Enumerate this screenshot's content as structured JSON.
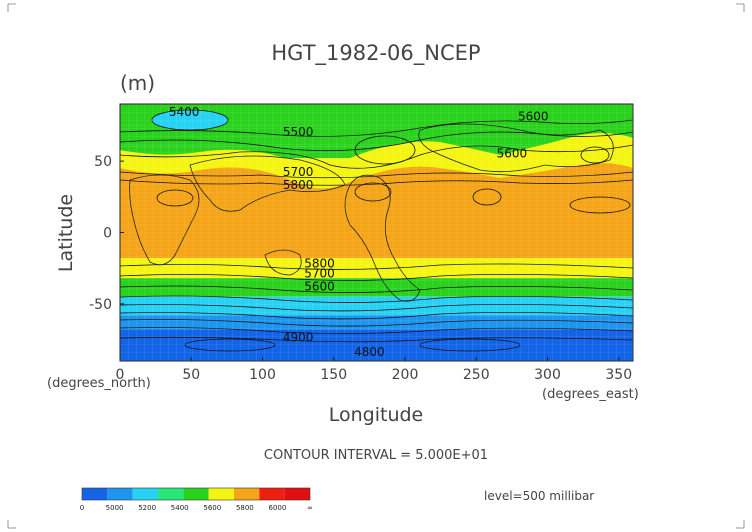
{
  "chart_data": {
    "type": "heatmap",
    "title": "HGT_1982-06_NCEP",
    "units": "(m)",
    "xlabel": "Longitude",
    "ylabel": "Latitude",
    "x_axis_note": "(degrees_east)",
    "y_axis_note": "(degrees_north)",
    "xlim": [
      0,
      360
    ],
    "ylim": [
      -90,
      90
    ],
    "x_ticks": [
      0,
      50,
      100,
      150,
      200,
      250,
      300,
      350
    ],
    "y_ticks": [
      50,
      0,
      -50
    ],
    "contour_interval_text": "CONTOUR INTERVAL = 5.000E+01",
    "level_text": "level=500 millibar",
    "colorbar": {
      "labels": [
        "0",
        "5000",
        "5200",
        "5400",
        "5600",
        "5800",
        "6000",
        "∞"
      ],
      "colors": [
        "#1464e8",
        "#1e96f0",
        "#28d2f5",
        "#28e678",
        "#2ad21e",
        "#f5f514",
        "#f5a519",
        "#f01e0f",
        "#e01010"
      ],
      "levels": [
        0,
        5000,
        5200,
        5400,
        5600,
        5800,
        6000
      ]
    },
    "bands": [
      {
        "lat_top": 90,
        "lat_bottom": 75,
        "color": "#2ad21e"
      },
      {
        "lat_top": 75,
        "lat_bottom": 60,
        "color": "#2ad21e"
      },
      {
        "lat_top": 60,
        "lat_bottom": 52,
        "color": "#2ad21e"
      },
      {
        "lat_top": 52,
        "lat_bottom": 40,
        "color": "#f5f514"
      },
      {
        "lat_top": 40,
        "lat_bottom": -18,
        "color": "#f5a519"
      },
      {
        "lat_top": -18,
        "lat_bottom": -32,
        "color": "#f5f514"
      },
      {
        "lat_top": -32,
        "lat_bottom": -45,
        "color": "#2ad21e"
      },
      {
        "lat_top": -45,
        "lat_bottom": -58,
        "color": "#28d2f5"
      },
      {
        "lat_top": -58,
        "lat_bottom": -68,
        "color": "#1e96f0"
      },
      {
        "lat_top": -68,
        "lat_bottom": -90,
        "color": "#1464e8"
      }
    ],
    "contour_labels": [
      {
        "text": "5400",
        "lon": 45,
        "lat": 84
      },
      {
        "text": "5500",
        "lon": 125,
        "lat": 70
      },
      {
        "text": "5600",
        "lon": 275,
        "lat": 55
      },
      {
        "text": "5600",
        "lon": 290,
        "lat": 81
      },
      {
        "text": "5700",
        "lon": 125,
        "lat": 42
      },
      {
        "text": "5800",
        "lon": 125,
        "lat": 33
      },
      {
        "text": "5800",
        "lon": 140,
        "lat": -22
      },
      {
        "text": "5700",
        "lon": 140,
        "lat": -29
      },
      {
        "text": "5600",
        "lon": 140,
        "lat": -38
      },
      {
        "text": "4900",
        "lon": 125,
        "lat": -74
      },
      {
        "text": "4800",
        "lon": 175,
        "lat": -84
      }
    ]
  }
}
